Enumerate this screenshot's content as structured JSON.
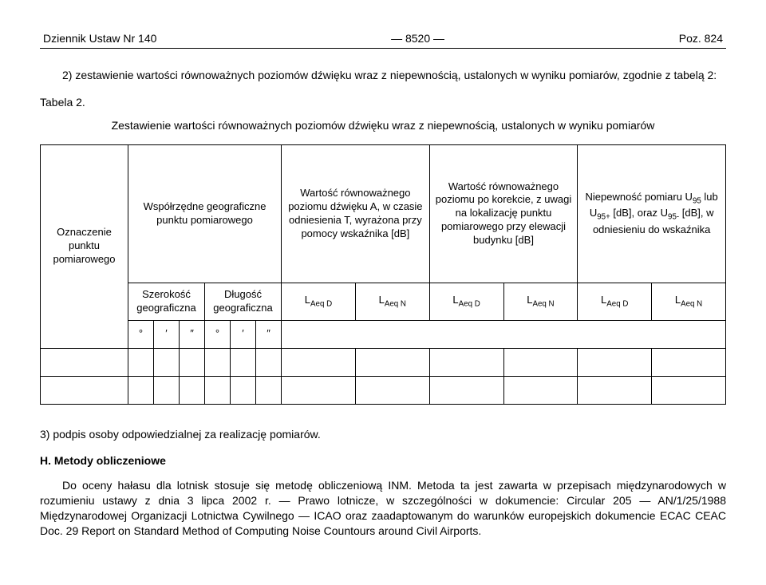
{
  "header": {
    "left": "Dziennik Ustaw Nr 140",
    "center": "— 8520 —",
    "right": "Poz. 824"
  },
  "intro": "2) zestawienie wartości równoważnych poziomów dźwięku wraz z niepewnością, ustalonych w wyniku pomiarów, zgodnie z tabelą 2:",
  "table_label": "Tabela 2.",
  "table_caption": "Zestawienie wartości równoważnych poziomów dźwięku wraz z niepewnością, ustalonych w wyniku pomiarów",
  "table": {
    "col1": "Oznaczenie punktu pomiarowego",
    "col2": "Współrzędne geograficzne punktu pomiarowego",
    "col3": "Wartość równoważnego poziomu dźwięku A, w czasie odniesienia T, wyrażona przy pomocy wskaźnika [dB]",
    "col4": "Wartość równoważnego poziomu po korekcie, z uwagi na lokalizację punktu pomiarowego przy elewacji budynku [dB]",
    "col5_html": "Niepewność pomiaru U<sub>95</sub> lub U<sub>95+</sub> [dB], oraz U<sub>95-</sub> [dB], w odniesieniu do wskaźnika",
    "sub_szer": "Szerokość geograficzna",
    "sub_dlug": "Długość geograficzna",
    "L_AeqD": "L",
    "L_AeqD_sub": "Aeq D",
    "L_AeqN": "L",
    "L_AeqN_sub": "Aeq N",
    "deg": "°",
    "min": "′",
    "sec": "″"
  },
  "item3": "3) podpis osoby odpowiedzialnej za realizację pomiarów.",
  "section_h": "H. Metody obliczeniowe",
  "body_text": "Do oceny hałasu dla lotnisk stosuje się metodę obliczeniową INM. Metoda ta jest zawarta w przepisach międzynarodowych w rozumieniu ustawy z dnia 3 lipca 2002 r. — Prawo lotnicze, w szczególności w dokumencie: Circular 205 — AN/1/25/1988 Międzynarodowej Organizacji Lotnictwa Cywilnego — ICAO oraz zaadaptowanym do warunków europejskich dokumencie ECAC CEAC Doc. 29 Report on Standard Method of Computing Noise Countours around Civil Airports."
}
